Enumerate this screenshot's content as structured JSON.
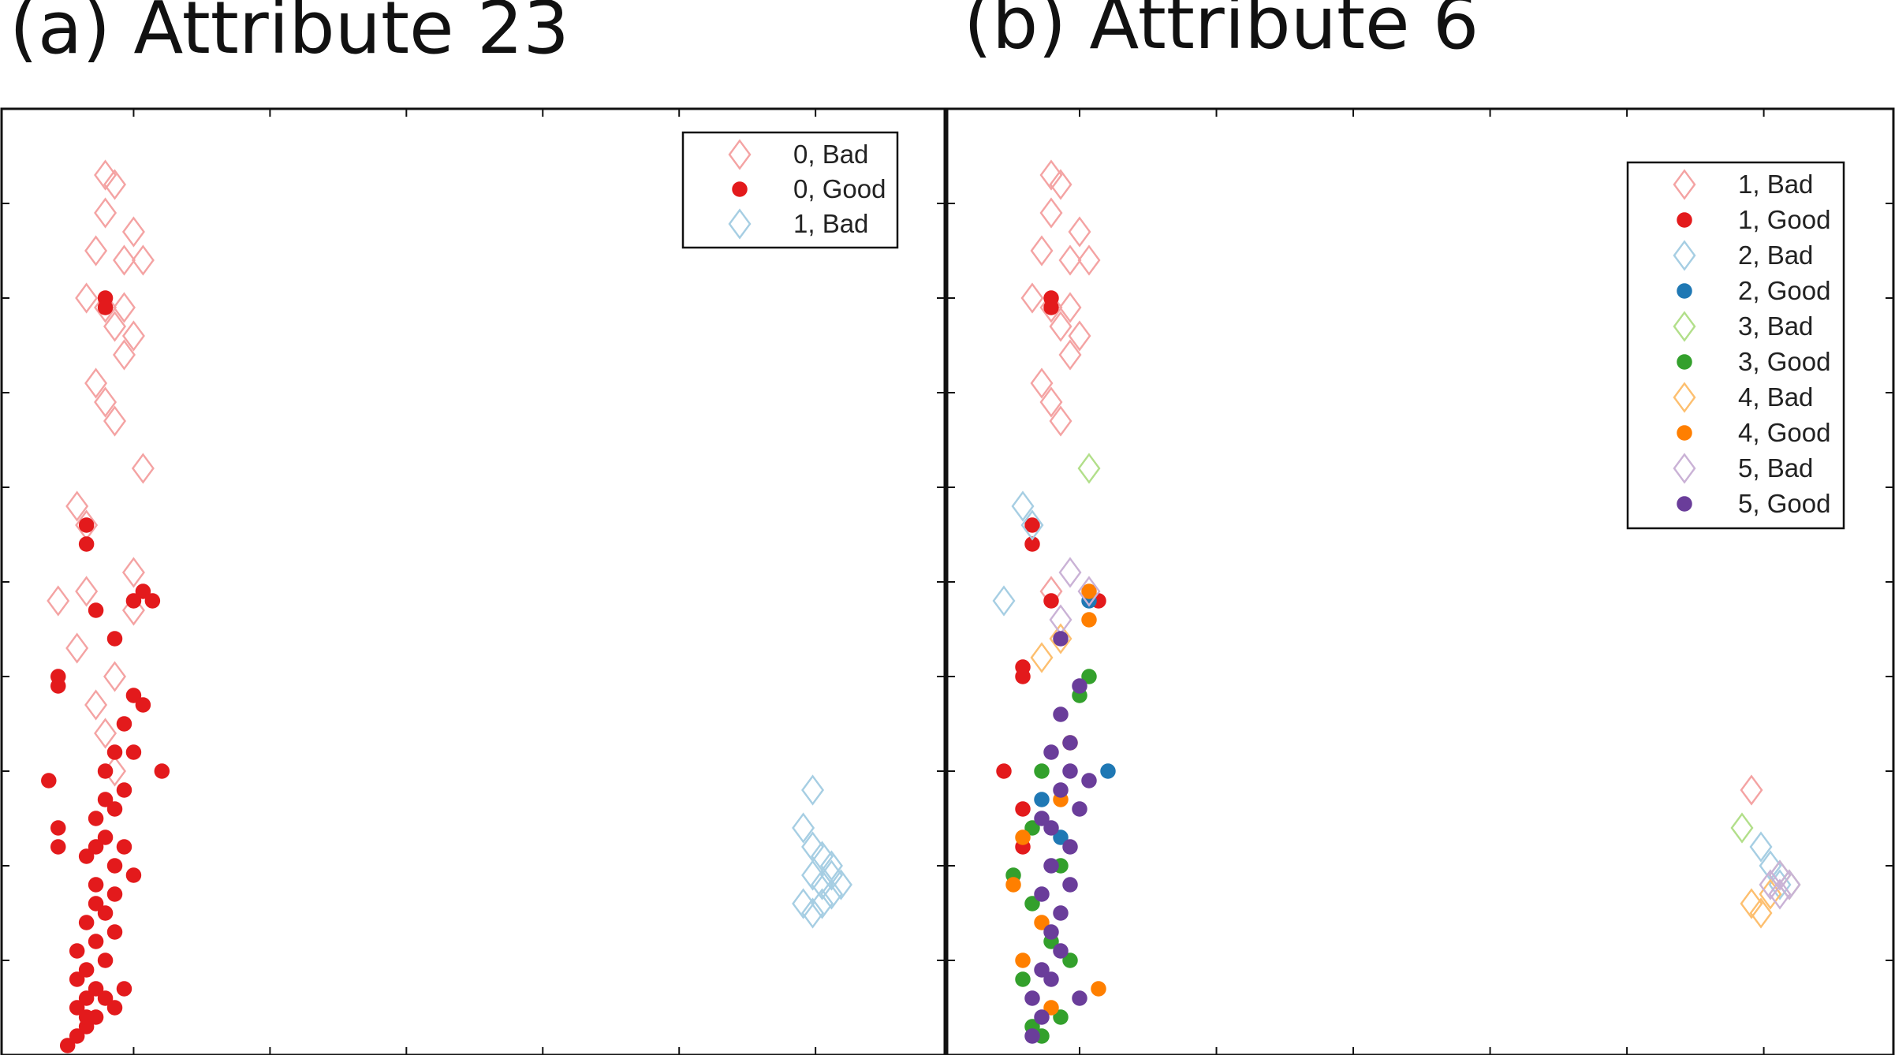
{
  "panels": [
    {
      "title": "(a) Attribute 23",
      "legend": [
        {
          "label": "0, Bad",
          "marker": "diamond-open",
          "color": "#f4a3a3"
        },
        {
          "label": "0, Good",
          "marker": "circle-filled",
          "color": "#e31a1c"
        },
        {
          "label": "1, Bad",
          "marker": "diamond-open",
          "color": "#a6cee3"
        }
      ]
    },
    {
      "title": "(b) Attribute 6",
      "legend": [
        {
          "label": "1, Bad",
          "marker": "diamond-open",
          "color": "#f4a3a3"
        },
        {
          "label": "1, Good",
          "marker": "circle-filled",
          "color": "#e31a1c"
        },
        {
          "label": "2, Bad",
          "marker": "diamond-open",
          "color": "#a6cee3"
        },
        {
          "label": "2, Good",
          "marker": "circle-filled",
          "color": "#1f78b4"
        },
        {
          "label": "3, Bad",
          "marker": "diamond-open",
          "color": "#b2df8a"
        },
        {
          "label": "3, Good",
          "marker": "circle-filled",
          "color": "#33a02c"
        },
        {
          "label": "4, Bad",
          "marker": "diamond-open",
          "color": "#fdbf6f"
        },
        {
          "label": "4, Good",
          "marker": "circle-filled",
          "color": "#ff7f00"
        },
        {
          "label": "5, Bad",
          "marker": "diamond-open",
          "color": "#cab2d6"
        },
        {
          "label": "5, Good",
          "marker": "circle-filled",
          "color": "#6a3d9a"
        }
      ]
    }
  ],
  "chart_data": [
    {
      "type": "scatter",
      "title": "(a) Attribute 23",
      "xlabel": "",
      "ylabel": "",
      "xlim": [
        0,
        1
      ],
      "ylim": [
        0,
        1
      ],
      "xticks": "unlabeled",
      "yticks": "unlabeled",
      "grid": false,
      "legend_position": "top-right",
      "series": [
        {
          "name": "0, Bad",
          "color": "#f4a3a3",
          "marker": "diamond-open",
          "points": [
            [
              0.11,
              0.93
            ],
            [
              0.12,
              0.92
            ],
            [
              0.11,
              0.89
            ],
            [
              0.14,
              0.87
            ],
            [
              0.1,
              0.85
            ],
            [
              0.13,
              0.84
            ],
            [
              0.15,
              0.84
            ],
            [
              0.09,
              0.8
            ],
            [
              0.11,
              0.79
            ],
            [
              0.13,
              0.79
            ],
            [
              0.12,
              0.77
            ],
            [
              0.14,
              0.76
            ],
            [
              0.13,
              0.74
            ],
            [
              0.1,
              0.71
            ],
            [
              0.11,
              0.69
            ],
            [
              0.12,
              0.67
            ],
            [
              0.15,
              0.62
            ],
            [
              0.08,
              0.58
            ],
            [
              0.09,
              0.56
            ],
            [
              0.14,
              0.51
            ],
            [
              0.06,
              0.48
            ],
            [
              0.09,
              0.49
            ],
            [
              0.14,
              0.47
            ],
            [
              0.08,
              0.43
            ],
            [
              0.12,
              0.4
            ],
            [
              0.1,
              0.37
            ],
            [
              0.11,
              0.34
            ],
            [
              0.12,
              0.3
            ]
          ]
        },
        {
          "name": "0, Good",
          "color": "#e31a1c",
          "marker": "circle-filled",
          "points": [
            [
              0.11,
              0.8
            ],
            [
              0.11,
              0.79
            ],
            [
              0.09,
              0.56
            ],
            [
              0.09,
              0.54
            ],
            [
              0.14,
              0.48
            ],
            [
              0.15,
              0.49
            ],
            [
              0.16,
              0.48
            ],
            [
              0.1,
              0.47
            ],
            [
              0.12,
              0.44
            ],
            [
              0.06,
              0.4
            ],
            [
              0.06,
              0.39
            ],
            [
              0.14,
              0.38
            ],
            [
              0.15,
              0.37
            ],
            [
              0.13,
              0.35
            ],
            [
              0.14,
              0.32
            ],
            [
              0.17,
              0.3
            ],
            [
              0.05,
              0.29
            ],
            [
              0.06,
              0.24
            ],
            [
              0.06,
              0.22
            ],
            [
              0.14,
              0.19
            ],
            [
              0.13,
              0.07
            ],
            [
              0.11,
              0.06
            ],
            [
              0.12,
              0.05
            ],
            [
              0.09,
              0.06
            ],
            [
              0.08,
              0.05
            ],
            [
              0.1,
              0.04
            ],
            [
              0.09,
              0.03
            ],
            [
              0.08,
              0.02
            ],
            [
              0.07,
              0.01
            ],
            [
              0.09,
              0.09
            ],
            [
              0.1,
              0.12
            ],
            [
              0.11,
              0.15
            ],
            [
              0.1,
              0.18
            ],
            [
              0.12,
              0.2
            ],
            [
              0.11,
              0.23
            ],
            [
              0.12,
              0.26
            ],
            [
              0.13,
              0.28
            ],
            [
              0.11,
              0.3
            ],
            [
              0.12,
              0.32
            ],
            [
              0.1,
              0.25
            ],
            [
              0.09,
              0.21
            ],
            [
              0.1,
              0.16
            ],
            [
              0.08,
              0.11
            ],
            [
              0.12,
              0.13
            ],
            [
              0.11,
              0.1
            ],
            [
              0.09,
              0.14
            ],
            [
              0.1,
              0.22
            ],
            [
              0.11,
              0.27
            ],
            [
              0.13,
              0.22
            ],
            [
              0.12,
              0.17
            ],
            [
              0.08,
              0.08
            ],
            [
              0.1,
              0.07
            ],
            [
              0.09,
              0.04
            ]
          ]
        },
        {
          "name": "1, Bad",
          "color": "#a6cee3",
          "marker": "diamond-open",
          "points": [
            [
              0.86,
              0.28
            ],
            [
              0.85,
              0.24
            ],
            [
              0.86,
              0.22
            ],
            [
              0.87,
              0.21
            ],
            [
              0.88,
              0.19
            ],
            [
              0.87,
              0.18
            ],
            [
              0.88,
              0.17
            ],
            [
              0.89,
              0.18
            ],
            [
              0.87,
              0.16
            ],
            [
              0.86,
              0.15
            ],
            [
              0.85,
              0.16
            ],
            [
              0.86,
              0.19
            ],
            [
              0.88,
              0.2
            ]
          ]
        }
      ]
    },
    {
      "type": "scatter",
      "title": "(b) Attribute 6",
      "xlabel": "",
      "ylabel": "",
      "xlim": [
        0,
        1
      ],
      "ylim": [
        0,
        1
      ],
      "xticks": "unlabeled",
      "yticks": "unlabeled",
      "grid": false,
      "legend_position": "top-right",
      "series": [
        {
          "name": "1, Bad",
          "color": "#f4a3a3",
          "marker": "diamond-open",
          "points": [
            [
              0.11,
              0.93
            ],
            [
              0.12,
              0.92
            ],
            [
              0.11,
              0.89
            ],
            [
              0.14,
              0.87
            ],
            [
              0.1,
              0.85
            ],
            [
              0.13,
              0.84
            ],
            [
              0.15,
              0.84
            ],
            [
              0.09,
              0.8
            ],
            [
              0.11,
              0.79
            ],
            [
              0.13,
              0.79
            ],
            [
              0.12,
              0.77
            ],
            [
              0.14,
              0.76
            ],
            [
              0.13,
              0.74
            ],
            [
              0.1,
              0.71
            ],
            [
              0.11,
              0.69
            ],
            [
              0.12,
              0.67
            ],
            [
              0.11,
              0.49
            ],
            [
              0.85,
              0.28
            ]
          ]
        },
        {
          "name": "1, Good",
          "color": "#e31a1c",
          "marker": "circle-filled",
          "points": [
            [
              0.11,
              0.8
            ],
            [
              0.11,
              0.79
            ],
            [
              0.09,
              0.56
            ],
            [
              0.09,
              0.54
            ],
            [
              0.11,
              0.48
            ],
            [
              0.16,
              0.48
            ],
            [
              0.08,
              0.41
            ],
            [
              0.08,
              0.4
            ],
            [
              0.06,
              0.3
            ],
            [
              0.08,
              0.26
            ],
            [
              0.08,
              0.22
            ]
          ]
        },
        {
          "name": "2, Bad",
          "color": "#a6cee3",
          "marker": "diamond-open",
          "points": [
            [
              0.08,
              0.58
            ],
            [
              0.09,
              0.56
            ],
            [
              0.06,
              0.48
            ],
            [
              0.86,
              0.22
            ],
            [
              0.87,
              0.2
            ],
            [
              0.88,
              0.18
            ]
          ]
        },
        {
          "name": "2, Good",
          "color": "#1f78b4",
          "marker": "circle-filled",
          "points": [
            [
              0.15,
              0.48
            ],
            [
              0.17,
              0.3
            ],
            [
              0.12,
              0.23
            ],
            [
              0.1,
              0.27
            ]
          ]
        },
        {
          "name": "3, Bad",
          "color": "#b2df8a",
          "marker": "diamond-open",
          "points": [
            [
              0.15,
              0.62
            ],
            [
              0.84,
              0.24
            ],
            [
              0.88,
              0.19
            ],
            [
              0.89,
              0.18
            ]
          ]
        },
        {
          "name": "3, Good",
          "color": "#33a02c",
          "marker": "circle-filled",
          "points": [
            [
              0.15,
              0.4
            ],
            [
              0.14,
              0.38
            ],
            [
              0.1,
              0.3
            ],
            [
              0.09,
              0.24
            ],
            [
              0.12,
              0.2
            ],
            [
              0.09,
              0.16
            ],
            [
              0.11,
              0.12
            ],
            [
              0.08,
              0.08
            ],
            [
              0.09,
              0.03
            ],
            [
              0.1,
              0.02
            ],
            [
              0.12,
              0.04
            ],
            [
              0.13,
              0.1
            ],
            [
              0.07,
              0.19
            ]
          ]
        },
        {
          "name": "4, Bad",
          "color": "#fdbf6f",
          "marker": "diamond-open",
          "points": [
            [
              0.1,
              0.42
            ],
            [
              0.12,
              0.44
            ],
            [
              0.85,
              0.16
            ],
            [
              0.86,
              0.15
            ],
            [
              0.87,
              0.17
            ]
          ]
        },
        {
          "name": "4, Good",
          "color": "#ff7f00",
          "marker": "circle-filled",
          "points": [
            [
              0.15,
              0.49
            ],
            [
              0.15,
              0.46
            ],
            [
              0.16,
              0.07
            ],
            [
              0.08,
              0.23
            ],
            [
              0.07,
              0.18
            ],
            [
              0.1,
              0.14
            ],
            [
              0.11,
              0.05
            ],
            [
              0.08,
              0.1
            ],
            [
              0.12,
              0.27
            ],
            [
              0.13,
              0.33
            ]
          ]
        },
        {
          "name": "5, Bad",
          "color": "#cab2d6",
          "marker": "diamond-open",
          "points": [
            [
              0.13,
              0.51
            ],
            [
              0.15,
              0.49
            ],
            [
              0.12,
              0.46
            ],
            [
              0.87,
              0.18
            ],
            [
              0.88,
              0.19
            ],
            [
              0.88,
              0.17
            ],
            [
              0.89,
              0.18
            ]
          ]
        },
        {
          "name": "5, Good",
          "color": "#6a3d9a",
          "marker": "circle-filled",
          "points": [
            [
              0.12,
              0.44
            ],
            [
              0.14,
              0.39
            ],
            [
              0.12,
              0.36
            ],
            [
              0.13,
              0.33
            ],
            [
              0.15,
              0.29
            ],
            [
              0.14,
              0.26
            ],
            [
              0.13,
              0.22
            ],
            [
              0.11,
              0.32
            ],
            [
              0.12,
              0.28
            ],
            [
              0.1,
              0.25
            ],
            [
              0.11,
              0.2
            ],
            [
              0.1,
              0.17
            ],
            [
              0.11,
              0.13
            ],
            [
              0.1,
              0.09
            ],
            [
              0.09,
              0.06
            ],
            [
              0.1,
              0.04
            ],
            [
              0.09,
              0.02
            ],
            [
              0.13,
              0.18
            ],
            [
              0.12,
              0.11
            ],
            [
              0.14,
              0.06
            ],
            [
              0.11,
              0.08
            ],
            [
              0.12,
              0.15
            ],
            [
              0.13,
              0.3
            ],
            [
              0.11,
              0.24
            ]
          ]
        }
      ]
    }
  ]
}
